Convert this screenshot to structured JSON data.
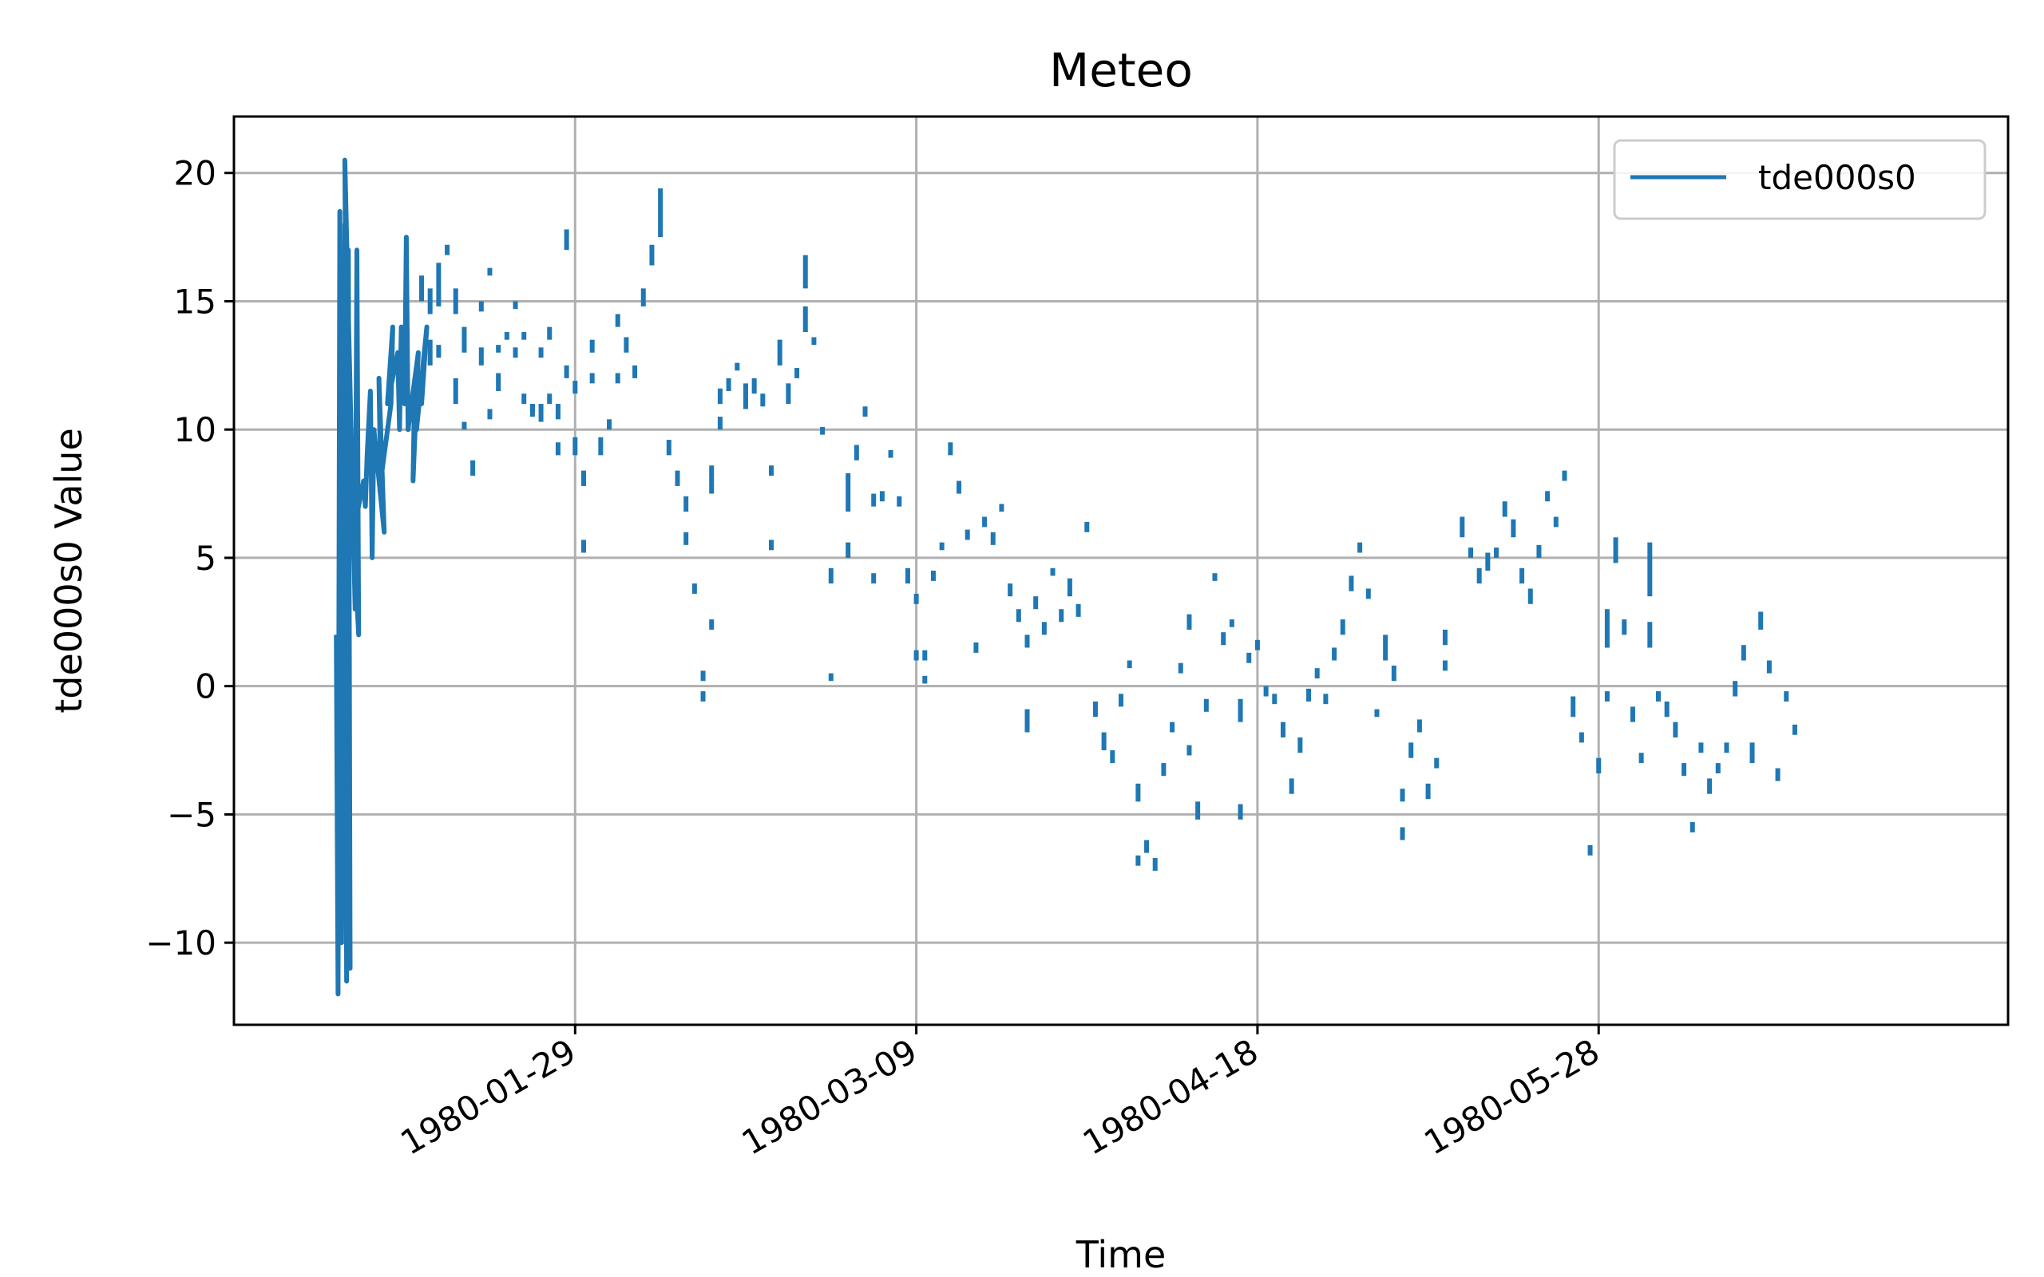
{
  "chart_data": {
    "type": "line",
    "title": "Meteo",
    "xlabel": "Time",
    "ylabel": "tde000s0 Value",
    "x_axis_kind": "date",
    "xlim": [
      "1979-12-20",
      "1980-07-15"
    ],
    "ylim": [
      -13.2,
      22.2
    ],
    "x_ticks": [
      "1980-01-29",
      "1980-03-09",
      "1980-04-18",
      "1980-05-28"
    ],
    "y_ticks": [
      -10,
      -5,
      0,
      5,
      10,
      15,
      20
    ],
    "y_tick_labels": [
      "−10",
      "−5",
      "0",
      "5",
      "10",
      "15",
      "20"
    ],
    "grid": true,
    "legend": {
      "position": "top-right",
      "entries": [
        "tde000s0"
      ]
    },
    "series": [
      {
        "name": "tde000s0",
        "color": "#1f77b4",
        "dense_trace": {
          "x": [
            "1980-01-01",
            "1980-01-01",
            "1980-01-01",
            "1980-01-01",
            "1980-01-02",
            "1980-01-02",
            "1980-01-02",
            "1980-01-02",
            "1980-01-02",
            "1980-01-03",
            "1980-01-03",
            "1980-01-03",
            "1980-01-03",
            "1980-01-04",
            "1980-01-04",
            "1980-01-04",
            "1980-01-05",
            "1980-01-05",
            "1980-01-05",
            "1980-01-06",
            "1980-01-06",
            "1980-01-06",
            "1980-01-07",
            "1980-01-07",
            "1980-01-07",
            "1980-01-08",
            "1980-01-08",
            "1980-01-08",
            "1980-01-09",
            "1980-01-09",
            "1980-01-09",
            "1980-01-10",
            "1980-01-10",
            "1980-01-10",
            "1980-01-10",
            "1980-01-11",
            "1980-01-11",
            "1980-01-11"
          ],
          "y": [
            2,
            -12,
            18.5,
            -10,
            18,
            -11.5,
            17,
            -11,
            20.5,
            3,
            17,
            2,
            6,
            8,
            7,
            9,
            11.5,
            5,
            10,
            6,
            12,
            8,
            11,
            14,
            11,
            13,
            10,
            14,
            11,
            17.5,
            10,
            13,
            8,
            12,
            10,
            14,
            11,
            12
          ]
        },
        "segments": [
          [
            "1980-01-11",
            15.0,
            16.0
          ],
          [
            "1980-01-12",
            14.5,
            15.5
          ],
          [
            "1980-01-12",
            12.5,
            13.5
          ],
          [
            "1980-01-13",
            14.8,
            16.5
          ],
          [
            "1980-01-13",
            12.8,
            13.3
          ],
          [
            "1980-01-14",
            16.8,
            17.2
          ],
          [
            "1980-01-15",
            14.5,
            15.5
          ],
          [
            "1980-01-15",
            11.0,
            12.0
          ],
          [
            "1980-01-16",
            13.0,
            14.0
          ],
          [
            "1980-01-16",
            10.0,
            10.3
          ],
          [
            "1980-01-17",
            8.2,
            8.8
          ],
          [
            "1980-01-18",
            14.6,
            15.0
          ],
          [
            "1980-01-18",
            12.5,
            13.2
          ],
          [
            "1980-01-19",
            10.4,
            10.8
          ],
          [
            "1980-01-19",
            16.0,
            16.3
          ],
          [
            "1980-01-20",
            11.5,
            12.2
          ],
          [
            "1980-01-20",
            13.0,
            13.3
          ],
          [
            "1980-01-21",
            13.5,
            13.8
          ],
          [
            "1980-01-22",
            14.7,
            15.0
          ],
          [
            "1980-01-22",
            12.8,
            13.2
          ],
          [
            "1980-01-23",
            13.5,
            13.8
          ],
          [
            "1980-01-23",
            11.0,
            11.4
          ],
          [
            "1980-01-24",
            10.5,
            11.0
          ],
          [
            "1980-01-24",
            10.7,
            11.0
          ],
          [
            "1980-01-25",
            10.3,
            11.0
          ],
          [
            "1980-01-25",
            12.8,
            13.2
          ],
          [
            "1980-01-26",
            13.5,
            14.0
          ],
          [
            "1980-01-26",
            11.0,
            11.4
          ],
          [
            "1980-01-27",
            10.4,
            11.0
          ],
          [
            "1980-01-27",
            9.0,
            9.5
          ],
          [
            "1980-01-28",
            17.0,
            17.8
          ],
          [
            "1980-01-28",
            12.0,
            12.5
          ],
          [
            "1980-01-29",
            11.4,
            11.9
          ],
          [
            "1980-01-29",
            9.0,
            9.7
          ],
          [
            "1980-01-30",
            7.8,
            8.4
          ],
          [
            "1980-01-30",
            5.2,
            5.7
          ],
          [
            "1980-01-31",
            13.0,
            13.5
          ],
          [
            "1980-01-31",
            11.8,
            12.2
          ],
          [
            "1980-02-01",
            9.0,
            9.7
          ],
          [
            "1980-02-02",
            10.0,
            10.4
          ],
          [
            "1980-02-03",
            14.0,
            14.5
          ],
          [
            "1980-02-03",
            11.8,
            12.2
          ],
          [
            "1980-02-04",
            13.0,
            13.6
          ],
          [
            "1980-02-05",
            12.0,
            12.5
          ],
          [
            "1980-02-06",
            14.8,
            15.5
          ],
          [
            "1980-02-07",
            16.4,
            17.2
          ],
          [
            "1980-02-08",
            17.5,
            19.4
          ],
          [
            "1980-02-09",
            9.0,
            9.6
          ],
          [
            "1980-02-10",
            7.8,
            8.4
          ],
          [
            "1980-02-11",
            6.8,
            7.4
          ],
          [
            "1980-02-11",
            5.5,
            6.0
          ],
          [
            "1980-02-12",
            3.6,
            4.0
          ],
          [
            "1980-02-13",
            0.2,
            0.6
          ],
          [
            "1980-02-13",
            -0.6,
            -0.2
          ],
          [
            "1980-02-14",
            7.5,
            8.6
          ],
          [
            "1980-02-14",
            2.2,
            2.6
          ],
          [
            "1980-02-15",
            11.0,
            11.6
          ],
          [
            "1980-02-15",
            10.0,
            10.5
          ],
          [
            "1980-02-16",
            11.5,
            12.0
          ],
          [
            "1980-02-17",
            12.3,
            12.6
          ],
          [
            "1980-02-18",
            10.8,
            11.8
          ],
          [
            "1980-02-19",
            11.4,
            12.0
          ],
          [
            "1980-02-20",
            10.9,
            11.4
          ],
          [
            "1980-02-21",
            8.2,
            8.6
          ],
          [
            "1980-02-21",
            5.3,
            5.7
          ],
          [
            "1980-02-22",
            12.5,
            13.5
          ],
          [
            "1980-02-23",
            11.0,
            11.8
          ],
          [
            "1980-02-24",
            12.0,
            12.4
          ],
          [
            "1980-02-25",
            13.8,
            14.8
          ],
          [
            "1980-02-25",
            15.5,
            16.8
          ],
          [
            "1980-02-26",
            13.3,
            13.6
          ],
          [
            "1980-02-27",
            9.8,
            10.1
          ],
          [
            "1980-02-28",
            0.2,
            0.5
          ],
          [
            "1980-02-28",
            4.0,
            4.6
          ],
          [
            "1980-03-01",
            6.8,
            8.3
          ],
          [
            "1980-03-01",
            5.0,
            5.6
          ],
          [
            "1980-03-02",
            8.8,
            9.4
          ],
          [
            "1980-03-03",
            10.5,
            10.9
          ],
          [
            "1980-03-04",
            7.0,
            7.5
          ],
          [
            "1980-03-04",
            4.0,
            4.4
          ],
          [
            "1980-03-05",
            7.2,
            7.6
          ],
          [
            "1980-03-06",
            8.9,
            9.2
          ],
          [
            "1980-03-07",
            7.0,
            7.4
          ],
          [
            "1980-03-08",
            4.0,
            4.6
          ],
          [
            "1980-03-09",
            3.2,
            3.6
          ],
          [
            "1980-03-09",
            1.0,
            1.4
          ],
          [
            "1980-03-10",
            1.0,
            1.4
          ],
          [
            "1980-03-10",
            0.1,
            0.4
          ],
          [
            "1980-03-11",
            4.1,
            4.5
          ],
          [
            "1980-03-12",
            5.3,
            5.6
          ],
          [
            "1980-03-13",
            9.0,
            9.5
          ],
          [
            "1980-03-14",
            7.5,
            8.0
          ],
          [
            "1980-03-15",
            5.7,
            6.1
          ],
          [
            "1980-03-16",
            1.3,
            1.7
          ],
          [
            "1980-03-17",
            6.2,
            6.6
          ],
          [
            "1980-03-18",
            5.5,
            6.0
          ],
          [
            "1980-03-19",
            6.8,
            7.1
          ],
          [
            "1980-03-20",
            3.5,
            4.0
          ],
          [
            "1980-03-21",
            2.5,
            3.0
          ],
          [
            "1980-03-22",
            1.5,
            2.0
          ],
          [
            "1980-03-22",
            -1.8,
            -0.9
          ],
          [
            "1980-03-23",
            3.0,
            3.5
          ],
          [
            "1980-03-24",
            2.0,
            2.5
          ],
          [
            "1980-03-25",
            4.3,
            4.6
          ],
          [
            "1980-03-26",
            2.5,
            3.0
          ],
          [
            "1980-03-27",
            3.5,
            4.2
          ],
          [
            "1980-03-28",
            2.7,
            3.2
          ],
          [
            "1980-03-29",
            6.0,
            6.4
          ],
          [
            "1980-03-30",
            -1.2,
            -0.6
          ],
          [
            "1980-03-31",
            -2.5,
            -1.8
          ],
          [
            "1980-04-01",
            -3.0,
            -2.5
          ],
          [
            "1980-04-02",
            -0.8,
            -0.3
          ],
          [
            "1980-04-03",
            0.7,
            1.0
          ],
          [
            "1980-04-04",
            -4.5,
            -3.8
          ],
          [
            "1980-04-04",
            -7.0,
            -6.6
          ],
          [
            "1980-04-05",
            -6.5,
            -6.0
          ],
          [
            "1980-04-06",
            -7.2,
            -6.7
          ],
          [
            "1980-04-07",
            -3.5,
            -3.0
          ],
          [
            "1980-04-08",
            -1.8,
            -1.4
          ],
          [
            "1980-04-09",
            0.5,
            0.9
          ],
          [
            "1980-04-10",
            2.2,
            2.8
          ],
          [
            "1980-04-10",
            -2.7,
            -2.3
          ],
          [
            "1980-04-11",
            -5.2,
            -4.5
          ],
          [
            "1980-04-12",
            -1.0,
            -0.5
          ],
          [
            "1980-04-13",
            4.1,
            4.4
          ],
          [
            "1980-04-14",
            1.6,
            2.1
          ],
          [
            "1980-04-15",
            2.3,
            2.6
          ],
          [
            "1980-04-16",
            -5.2,
            -4.6
          ],
          [
            "1980-04-16",
            -1.4,
            -0.5
          ],
          [
            "1980-04-17",
            0.9,
            1.3
          ],
          [
            "1980-04-18",
            1.4,
            1.8
          ],
          [
            "1980-04-19",
            -0.4,
            0.0
          ],
          [
            "1980-04-20",
            -0.7,
            -0.3
          ],
          [
            "1980-04-21",
            -2.0,
            -1.4
          ],
          [
            "1980-04-22",
            -4.2,
            -3.6
          ],
          [
            "1980-04-23",
            -2.6,
            -2.0
          ],
          [
            "1980-04-24",
            -0.6,
            -0.1
          ],
          [
            "1980-04-25",
            0.3,
            0.7
          ],
          [
            "1980-04-26",
            -0.7,
            -0.3
          ],
          [
            "1980-04-27",
            1.0,
            1.5
          ],
          [
            "1980-04-28",
            2.0,
            2.6
          ],
          [
            "1980-04-29",
            3.7,
            4.3
          ],
          [
            "1980-04-30",
            5.2,
            5.6
          ],
          [
            "1980-05-01",
            3.4,
            3.8
          ],
          [
            "1980-05-02",
            -1.2,
            -0.9
          ],
          [
            "1980-05-03",
            1.0,
            2.0
          ],
          [
            "1980-05-04",
            0.2,
            0.8
          ],
          [
            "1980-05-05",
            -6.0,
            -5.5
          ],
          [
            "1980-05-05",
            -4.5,
            -4.0
          ],
          [
            "1980-05-06",
            -2.8,
            -2.2
          ],
          [
            "1980-05-07",
            -1.8,
            -1.3
          ],
          [
            "1980-05-08",
            -4.4,
            -3.8
          ],
          [
            "1980-05-09",
            -3.2,
            -2.8
          ],
          [
            "1980-05-10",
            1.6,
            2.2
          ],
          [
            "1980-05-10",
            0.6,
            1.0
          ],
          [
            "1980-05-12",
            5.8,
            6.6
          ],
          [
            "1980-05-13",
            5.0,
            5.4
          ],
          [
            "1980-05-14",
            4.0,
            4.6
          ],
          [
            "1980-05-15",
            4.5,
            5.2
          ],
          [
            "1980-05-16",
            5.0,
            5.4
          ],
          [
            "1980-05-17",
            6.6,
            7.2
          ],
          [
            "1980-05-18",
            5.8,
            6.5
          ],
          [
            "1980-05-19",
            4.0,
            4.6
          ],
          [
            "1980-05-20",
            3.2,
            3.8
          ],
          [
            "1980-05-21",
            5.0,
            5.5
          ],
          [
            "1980-05-22",
            7.2,
            7.6
          ],
          [
            "1980-05-23",
            6.2,
            6.6
          ],
          [
            "1980-05-24",
            8.0,
            8.4
          ],
          [
            "1980-05-25",
            -1.2,
            -0.4
          ],
          [
            "1980-05-26",
            -2.2,
            -1.8
          ],
          [
            "1980-05-27",
            -6.6,
            -6.2
          ],
          [
            "1980-05-28",
            -3.4,
            -2.8
          ],
          [
            "1980-05-29",
            1.5,
            3.0
          ],
          [
            "1980-05-29",
            -0.6,
            -0.2
          ],
          [
            "1980-05-30",
            4.8,
            5.8
          ],
          [
            "1980-05-31",
            2.0,
            2.6
          ],
          [
            "1980-06-01",
            -1.4,
            -0.8
          ],
          [
            "1980-06-02",
            -3.0,
            -2.6
          ],
          [
            "1980-06-03",
            1.5,
            2.5
          ],
          [
            "1980-06-03",
            3.5,
            5.6
          ],
          [
            "1980-06-04",
            -0.6,
            -0.2
          ],
          [
            "1980-06-05",
            -1.2,
            -0.6
          ],
          [
            "1980-06-06",
            -2.0,
            -1.4
          ],
          [
            "1980-06-07",
            -3.5,
            -3.0
          ],
          [
            "1980-06-08",
            -5.7,
            -5.3
          ],
          [
            "1980-06-09",
            -2.6,
            -2.2
          ],
          [
            "1980-06-10",
            -4.2,
            -3.6
          ],
          [
            "1980-06-11",
            -3.4,
            -3.0
          ],
          [
            "1980-06-12",
            -2.6,
            -2.2
          ],
          [
            "1980-06-13",
            -0.4,
            0.2
          ],
          [
            "1980-06-14",
            1.0,
            1.6
          ],
          [
            "1980-06-15",
            -3.0,
            -2.2
          ],
          [
            "1980-06-16",
            2.2,
            2.9
          ],
          [
            "1980-06-17",
            0.5,
            1.0
          ],
          [
            "1980-06-18",
            -3.7,
            -3.2
          ],
          [
            "1980-06-19",
            -0.6,
            -0.2
          ],
          [
            "1980-06-20",
            -1.9,
            -1.5
          ]
        ]
      }
    ]
  }
}
